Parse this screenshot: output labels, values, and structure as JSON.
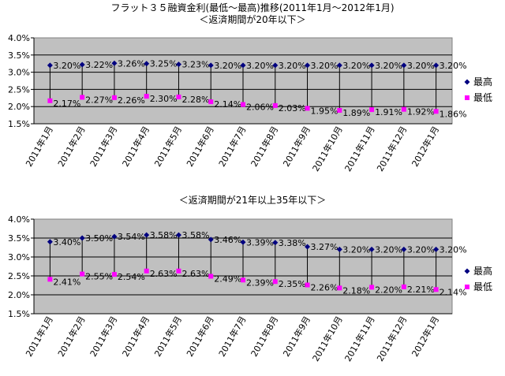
{
  "page_title": "フラット３５融資金利(最低～最高)推移(2011年1月～2012年1月)",
  "chart_data": [
    {
      "type": "line",
      "title": "＜返済期間が20年以下＞",
      "categories": [
        "2011年1月",
        "2011年2月",
        "2011年3月",
        "2011年4月",
        "2011年5月",
        "2011年6月",
        "2011年7月",
        "2011年8月",
        "2011年9月",
        "2011年10月",
        "2011年11月",
        "2011年12月",
        "2012年1月"
      ],
      "series": [
        {
          "name": "最高",
          "color": "#000080",
          "marker": "diamond",
          "values": [
            3.2,
            3.22,
            3.26,
            3.25,
            3.23,
            3.2,
            3.2,
            3.2,
            3.2,
            3.2,
            3.2,
            3.2,
            3.2
          ],
          "labels": [
            "3.20%",
            "3.22%",
            "3.26%",
            "3.25%",
            "3.23%",
            "3.20%",
            "3.20%",
            "3.20%",
            "3.20%",
            "3.20%",
            "3.20%",
            "3.20%",
            "3.20%"
          ]
        },
        {
          "name": "最低",
          "color": "#ff00ff",
          "marker": "square",
          "values": [
            2.17,
            2.27,
            2.26,
            2.3,
            2.28,
            2.14,
            2.06,
            2.03,
            1.95,
            1.89,
            1.91,
            1.92,
            1.86
          ],
          "labels": [
            "2.17%",
            "2.27%",
            "2.26%",
            "2.30%",
            "2.28%",
            "2.14%",
            "2.06%",
            "2.03%",
            "1.95%",
            "1.89%",
            "1.91%",
            "1.92%",
            "1.86%"
          ]
        }
      ],
      "ylim": [
        1.5,
        4.0
      ],
      "yticks": [
        "1.5%",
        "2.0%",
        "2.5%",
        "3.0%",
        "3.5%",
        "4.0%"
      ],
      "grid": true,
      "legend": "right",
      "plot_bg": "#c0c0c0"
    },
    {
      "type": "line",
      "title": "＜返済期間が21年以上35年以下＞",
      "categories": [
        "2011年1月",
        "2011年2月",
        "2011年3月",
        "2011年4月",
        "2011年5月",
        "2011年6月",
        "2011年7月",
        "2011年8月",
        "2011年9月",
        "2011年10月",
        "2011年11月",
        "2011年12月",
        "2012年1月"
      ],
      "series": [
        {
          "name": "最高",
          "color": "#000080",
          "marker": "diamond",
          "values": [
            3.4,
            3.5,
            3.54,
            3.58,
            3.58,
            3.46,
            3.39,
            3.38,
            3.27,
            3.2,
            3.2,
            3.2,
            3.2
          ],
          "labels": [
            "3.40%",
            "3.50%",
            "3.54%",
            "3.58%",
            "3.58%",
            "3.46%",
            "3.39%",
            "3.38%",
            "3.27%",
            "3.20%",
            "3.20%",
            "3.20%",
            "3.20%"
          ]
        },
        {
          "name": "最低",
          "color": "#ff00ff",
          "marker": "square",
          "values": [
            2.41,
            2.55,
            2.54,
            2.63,
            2.63,
            2.49,
            2.39,
            2.35,
            2.26,
            2.18,
            2.2,
            2.21,
            2.14
          ],
          "labels": [
            "2.41%",
            "2.55%",
            "2.54%",
            "2.63%",
            "2.63%",
            "2.49%",
            "2.39%",
            "2.35%",
            "2.26%",
            "2.18%",
            "2.20%",
            "2.21%",
            "2.14%"
          ]
        }
      ],
      "ylim": [
        1.5,
        4.0
      ],
      "yticks": [
        "1.5%",
        "2.0%",
        "2.5%",
        "3.0%",
        "3.5%",
        "4.0%"
      ],
      "grid": true,
      "legend": "right",
      "plot_bg": "#c0c0c0"
    }
  ]
}
